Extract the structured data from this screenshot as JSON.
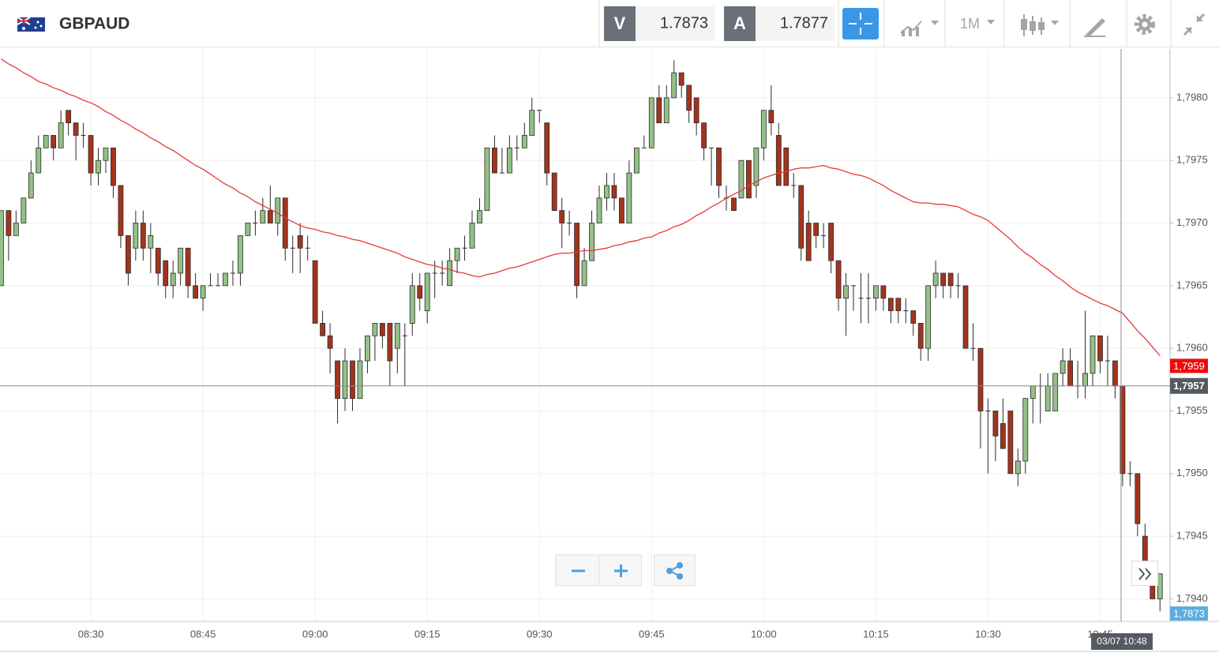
{
  "header": {
    "symbol": "GBPAUD",
    "bid": {
      "label": "V",
      "price": "1.7873"
    },
    "ask": {
      "label": "A",
      "price": "1.7877"
    },
    "timeframe": "1M"
  },
  "chart_data": {
    "type": "candlestick",
    "categories": [
      null,
      null,
      null,
      null,
      null,
      null,
      null,
      null,
      null,
      null,
      null,
      null,
      "08:30",
      null,
      null,
      null,
      null,
      null,
      null,
      null,
      null,
      null,
      null,
      null,
      null,
      null,
      null,
      "08:45",
      null,
      null,
      null,
      null,
      null,
      null,
      null,
      null,
      null,
      null,
      null,
      null,
      null,
      null,
      "09:00",
      null,
      null,
      null,
      null,
      null,
      null,
      null,
      null,
      null,
      null,
      null,
      null,
      null,
      null,
      "09:15",
      null,
      null,
      null,
      null,
      null,
      null,
      null,
      null,
      null,
      null,
      null,
      null,
      null,
      null,
      "09:30",
      null,
      null,
      null,
      null,
      null,
      null,
      null,
      null,
      null,
      null,
      null,
      null,
      null,
      null,
      "09:45",
      null,
      null,
      null,
      null,
      null,
      null,
      null,
      null,
      null,
      null,
      null,
      null,
      null,
      null,
      "10:00",
      null,
      null,
      null,
      null,
      null,
      null,
      null,
      null,
      null,
      null,
      null,
      null,
      null,
      null,
      "10:15",
      null,
      null,
      null,
      null,
      null,
      null,
      null,
      null,
      null,
      null,
      null,
      null,
      null,
      null,
      "10:30",
      null,
      null,
      null,
      null,
      null,
      null,
      null,
      null,
      null,
      null,
      null,
      null,
      null,
      null,
      "10:45",
      null,
      null,
      null,
      null,
      null,
      null,
      null,
      null
    ],
    "open": [
      1.7965,
      1.7971,
      1.7969,
      1.797,
      1.7972,
      1.7974,
      1.7976,
      1.7977,
      1.7976,
      1.7979,
      1.7978,
      1.7977,
      1.7977,
      1.7974,
      1.7975,
      1.7976,
      1.7973,
      1.7969,
      1.7968,
      1.797,
      1.7968,
      1.7968,
      1.7967,
      1.7965,
      1.7966,
      1.7968,
      1.7965,
      1.7964,
      1.7965,
      1.7965,
      1.7965,
      1.7966,
      1.7966,
      1.7969,
      1.797,
      1.797,
      1.7971,
      1.797,
      1.7972,
      1.7968,
      1.7969,
      1.7968,
      1.7967,
      1.7962,
      1.7961,
      1.7959,
      1.7956,
      1.7959,
      1.7956,
      1.7959,
      1.7961,
      1.7962,
      1.7962,
      1.796,
      1.7961,
      1.7962,
      1.7965,
      1.7963,
      1.7966,
      1.7966,
      1.7965,
      1.7967,
      1.7968,
      1.7968,
      1.797,
      1.7971,
      1.7976,
      1.7974,
      1.7974,
      1.7976,
      1.7976,
      1.7977,
      1.7979,
      1.7978,
      1.7974,
      1.7971,
      1.797,
      1.797,
      1.7965,
      1.7967,
      1.797,
      1.7972,
      1.7973,
      1.7972,
      1.797,
      1.7974,
      1.7976,
      1.7976,
      1.798,
      1.7978,
      1.798,
      1.7982,
      1.7981,
      1.798,
      1.7978,
      1.7976,
      1.7976,
      1.7972,
      1.7972,
      1.7972,
      1.7975,
      1.7973,
      1.7976,
      1.7979,
      1.7977,
      1.7976,
      1.7973,
      1.7973,
      1.797,
      1.797,
      1.7969,
      1.797,
      1.7967,
      1.7964,
      1.7965,
      1.7964,
      1.7964,
      1.7964,
      1.7965,
      1.7964,
      1.7964,
      1.7963,
      1.7963,
      1.7962,
      1.796,
      1.7965,
      1.7966,
      1.7966,
      1.7965,
      1.7965,
      1.796,
      1.796,
      1.7955,
      1.7955,
      1.7954,
      1.7955,
      1.795,
      1.7951,
      1.7956,
      1.7957,
      1.7955,
      1.7955,
      1.7958,
      1.7959,
      1.7957,
      1.7957,
      1.7958,
      1.7961,
      1.7959,
      1.7959,
      1.7957,
      1.795,
      1.795,
      1.7945,
      1.7942,
      1.794
    ],
    "high": [
      1.7971,
      1.7971,
      1.7971,
      1.7972,
      1.7975,
      1.7977,
      1.7977,
      1.7977,
      1.7979,
      1.7979,
      1.7978,
      1.7978,
      1.7977,
      1.7976,
      1.7976,
      1.7976,
      1.7973,
      1.7969,
      1.7971,
      1.7971,
      1.797,
      1.7968,
      1.7967,
      1.7967,
      1.7968,
      1.7968,
      1.7966,
      1.7965,
      1.7966,
      1.7966,
      1.7966,
      1.7967,
      1.7969,
      1.797,
      1.7971,
      1.7972,
      1.7973,
      1.7972,
      1.7972,
      1.7969,
      1.797,
      1.7969,
      1.7967,
      1.7963,
      1.7962,
      1.7959,
      1.796,
      1.7959,
      1.796,
      1.7961,
      1.7962,
      1.7962,
      1.7962,
      1.7962,
      1.7962,
      1.7966,
      1.7966,
      1.7966,
      1.7967,
      1.7967,
      1.7968,
      1.7968,
      1.7969,
      1.7971,
      1.7972,
      1.7976,
      1.7977,
      1.7976,
      1.7977,
      1.7977,
      1.7978,
      1.798,
      1.7979,
      1.7978,
      1.7974,
      1.7972,
      1.7971,
      1.797,
      1.7968,
      1.7971,
      1.7973,
      1.7974,
      1.7974,
      1.7972,
      1.7975,
      1.7976,
      1.7977,
      1.798,
      1.7981,
      1.7981,
      1.7983,
      1.7982,
      1.7981,
      1.798,
      1.7978,
      1.7976,
      1.7976,
      1.7973,
      1.7972,
      1.7975,
      1.7975,
      1.7976,
      1.7979,
      1.7981,
      1.7978,
      1.7976,
      1.7974,
      1.7973,
      1.7971,
      1.797,
      1.797,
      1.797,
      1.7967,
      1.7966,
      1.7965,
      1.7966,
      1.7966,
      1.7965,
      1.7965,
      1.7964,
      1.7964,
      1.7964,
      1.7963,
      1.7962,
      1.7965,
      1.7967,
      1.7966,
      1.7966,
      1.7966,
      1.7965,
      1.7962,
      1.796,
      1.7956,
      1.7955,
      1.7956,
      1.7955,
      1.7952,
      1.7956,
      1.7957,
      1.7958,
      1.7958,
      1.7958,
      1.796,
      1.796,
      1.7959,
      1.7963,
      1.7961,
      1.7961,
      1.7961,
      1.7959,
      1.7957,
      1.7951,
      1.795,
      1.7946,
      1.7943,
      1.7942
    ],
    "low": [
      1.7965,
      1.7967,
      1.7969,
      1.797,
      1.7972,
      1.7974,
      1.7976,
      1.7975,
      1.7976,
      1.7977,
      1.7975,
      1.7976,
      1.7973,
      1.7973,
      1.7974,
      1.7972,
      1.7968,
      1.7965,
      1.7967,
      1.7967,
      1.7966,
      1.7965,
      1.7964,
      1.7964,
      1.7965,
      1.7964,
      1.7964,
      1.7963,
      1.7965,
      1.7965,
      1.7965,
      1.7965,
      1.7965,
      1.7969,
      1.7969,
      1.797,
      1.797,
      1.7969,
      1.7967,
      1.7966,
      1.7966,
      1.7967,
      1.7962,
      1.7961,
      1.7958,
      1.7954,
      1.7955,
      1.7955,
      1.7956,
      1.7958,
      1.7959,
      1.796,
      1.7957,
      1.7958,
      1.7957,
      1.7961,
      1.7963,
      1.7962,
      1.7964,
      1.7965,
      1.7965,
      1.7966,
      1.7967,
      1.7968,
      1.797,
      1.7971,
      1.7974,
      1.7974,
      1.7974,
      1.7975,
      1.7976,
      1.7977,
      1.7978,
      1.7973,
      1.7971,
      1.7968,
      1.7969,
      1.7964,
      1.7965,
      1.7967,
      1.797,
      1.7971,
      1.7971,
      1.797,
      1.797,
      1.7974,
      1.7976,
      1.7976,
      1.7978,
      1.7978,
      1.798,
      1.798,
      1.7978,
      1.7977,
      1.7975,
      1.7973,
      1.7972,
      1.7971,
      1.7971,
      1.7972,
      1.7972,
      1.7972,
      1.7975,
      1.7977,
      1.7973,
      1.7973,
      1.7972,
      1.7967,
      1.7967,
      1.7968,
      1.7968,
      1.7966,
      1.7963,
      1.7961,
      1.7963,
      1.7962,
      1.7962,
      1.7963,
      1.7963,
      1.7962,
      1.7962,
      1.7962,
      1.7961,
      1.7959,
      1.7959,
      1.7964,
      1.7964,
      1.7964,
      1.7964,
      1.796,
      1.7959,
      1.7952,
      1.795,
      1.7951,
      1.7952,
      1.795,
      1.7949,
      1.795,
      1.7954,
      1.7954,
      1.7955,
      1.7955,
      1.7957,
      1.7957,
      1.7956,
      1.7956,
      1.7957,
      1.7958,
      1.7957,
      1.7956,
      1.7949,
      1.7949,
      1.7945,
      1.7942,
      1.794,
      1.7939
    ],
    "close": [
      1.7971,
      1.7969,
      1.797,
      1.7972,
      1.7974,
      1.7976,
      1.7977,
      1.7976,
      1.7978,
      1.7978,
      1.7977,
      1.7977,
      1.7974,
      1.7975,
      1.7976,
      1.7973,
      1.7969,
      1.7966,
      1.797,
      1.7968,
      1.7969,
      1.7966,
      1.7965,
      1.7966,
      1.7968,
      1.7965,
      1.7964,
      1.7965,
      1.7965,
      1.7965,
      1.7966,
      1.7966,
      1.7969,
      1.797,
      1.797,
      1.7971,
      1.797,
      1.7972,
      1.7968,
      1.7968,
      1.7968,
      1.7968,
      1.7962,
      1.7961,
      1.796,
      1.7956,
      1.7959,
      1.7956,
      1.7959,
      1.7961,
      1.7962,
      1.7961,
      1.7959,
      1.7962,
      1.7961,
      1.7965,
      1.7964,
      1.7966,
      1.7966,
      1.7966,
      1.7967,
      1.7968,
      1.7968,
      1.797,
      1.7971,
      1.7976,
      1.7974,
      1.7974,
      1.7976,
      1.7976,
      1.7977,
      1.7979,
      1.7979,
      1.7974,
      1.7971,
      1.797,
      1.797,
      1.7965,
      1.7967,
      1.797,
      1.7972,
      1.7973,
      1.7972,
      1.797,
      1.7974,
      1.7976,
      1.7976,
      1.798,
      1.7978,
      1.798,
      1.7982,
      1.7981,
      1.7979,
      1.7978,
      1.7976,
      1.7976,
      1.7973,
      1.7972,
      1.7971,
      1.7975,
      1.7972,
      1.7976,
      1.7979,
      1.7978,
      1.7973,
      1.7973,
      1.7973,
      1.7968,
      1.7967,
      1.7969,
      1.7969,
      1.7967,
      1.7964,
      1.7965,
      1.7965,
      1.7964,
      1.7964,
      1.7965,
      1.7964,
      1.7963,
      1.7963,
      1.7963,
      1.7962,
      1.796,
      1.7965,
      1.7966,
      1.7965,
      1.7965,
      1.7965,
      1.796,
      1.796,
      1.7955,
      1.7955,
      1.7953,
      1.7952,
      1.795,
      1.7951,
      1.7956,
      1.7957,
      1.7957,
      1.7957,
      1.7958,
      1.7959,
      1.7957,
      1.7957,
      1.7958,
      1.7961,
      1.7959,
      1.7959,
      1.7957,
      1.795,
      1.795,
      1.7946,
      1.7942,
      1.794,
      1.7942
    ],
    "colors": {
      "up": "#94c185",
      "down": "#a3341c",
      "outline": "#2b2b2b"
    },
    "moving_average": {
      "color": "#e8393a",
      "values": [
        1.79831,
        1.79827,
        1.79824,
        1.7982,
        1.79817,
        1.79813,
        1.79811,
        1.79808,
        1.79806,
        1.79803,
        1.79801,
        1.79798,
        1.79796,
        1.79793,
        1.79789,
        1.79786,
        1.79782,
        1.79779,
        1.79775,
        1.79772,
        1.79768,
        1.79765,
        1.79761,
        1.79758,
        1.79754,
        1.7975,
        1.79746,
        1.79743,
        1.79739,
        1.79735,
        1.79731,
        1.79728,
        1.79724,
        1.79721,
        1.79717,
        1.79714,
        1.79711,
        1.79708,
        1.79704,
        1.79701,
        1.79698,
        1.79696,
        1.79695,
        1.79693,
        1.79692,
        1.7969,
        1.79689,
        1.79687,
        1.79686,
        1.79684,
        1.79682,
        1.7968,
        1.79678,
        1.79676,
        1.79673,
        1.79671,
        1.79669,
        1.79667,
        1.79666,
        1.79664,
        1.79663,
        1.79661,
        1.7966,
        1.79658,
        1.79657,
        1.79659,
        1.7966,
        1.79662,
        1.79664,
        1.79665,
        1.79667,
        1.79669,
        1.79671,
        1.79673,
        1.79675,
        1.79676,
        1.79676,
        1.79677,
        1.79678,
        1.79678,
        1.79679,
        1.7968,
        1.79682,
        1.79683,
        1.79685,
        1.79686,
        1.79688,
        1.79689,
        1.79692,
        1.79694,
        1.79697,
        1.79699,
        1.79702,
        1.79706,
        1.79709,
        1.79713,
        1.79716,
        1.7972,
        1.79723,
        1.79726,
        1.7973,
        1.79733,
        1.79736,
        1.79738,
        1.7974,
        1.79741,
        1.79743,
        1.79744,
        1.79744,
        1.79745,
        1.79746,
        1.79744,
        1.79743,
        1.79741,
        1.79739,
        1.79738,
        1.79736,
        1.79733,
        1.7973,
        1.79726,
        1.79723,
        1.7972,
        1.79717,
        1.79716,
        1.79716,
        1.79715,
        1.79715,
        1.79714,
        1.79713,
        1.7971,
        1.79707,
        1.79705,
        1.79702,
        1.79697,
        1.79692,
        1.79687,
        1.79681,
        1.79676,
        1.79672,
        1.79667,
        1.79663,
        1.79658,
        1.79654,
        1.79649,
        1.79645,
        1.79642,
        1.79639,
        1.79636,
        1.79634,
        1.79631,
        1.79628,
        1.79621,
        1.79614,
        1.79608,
        1.79601,
        1.79594
      ]
    },
    "ylim": [
      1.79382,
      1.79839
    ],
    "yticks": [
      {
        "value": 1.794,
        "label": "1,7940"
      },
      {
        "value": 1.7945,
        "label": "1,7945"
      },
      {
        "value": 1.795,
        "label": "1,7950"
      },
      {
        "value": 1.7955,
        "label": "1,7955"
      },
      {
        "value": 1.796,
        "label": "1,7960"
      },
      {
        "value": 1.7965,
        "label": "1,7965"
      },
      {
        "value": 1.797,
        "label": "1,7970"
      },
      {
        "value": 1.7975,
        "label": "1,7975"
      },
      {
        "value": 1.798,
        "label": "1,7980"
      }
    ],
    "grid": true,
    "price_tag": {
      "value": 1.79586,
      "label": "1,7959",
      "color": "#f00a0a"
    },
    "crosshair": {
      "y": {
        "value": 1.7957,
        "label": "1,7957"
      },
      "x_label": "03/07 10:48",
      "color": "#555a61"
    },
    "bid_tag": {
      "label": "1,7873",
      "color": "#5aaee0"
    }
  }
}
